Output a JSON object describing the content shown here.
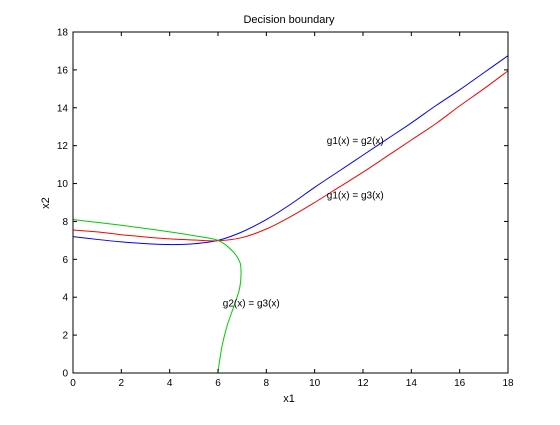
{
  "chart_data": {
    "type": "line",
    "title": "Decision boundary",
    "xlabel": "x1",
    "ylabel": "x2",
    "xlim": [
      0,
      18
    ],
    "ylim": [
      0,
      18
    ],
    "xticks": [
      0,
      2,
      4,
      6,
      8,
      10,
      12,
      14,
      16,
      18
    ],
    "yticks": [
      0,
      2,
      4,
      6,
      8,
      10,
      12,
      14,
      16,
      18
    ],
    "grid": false,
    "legend": "none",
    "series": [
      {
        "color": "#0000ff",
        "points": [
          [
            0,
            7.2
          ],
          [
            1,
            7.05
          ],
          [
            2,
            6.92
          ],
          [
            3,
            6.83
          ],
          [
            4,
            6.78
          ],
          [
            5,
            6.82
          ],
          [
            6,
            7.0
          ],
          [
            7,
            7.45
          ],
          [
            8,
            8.1
          ],
          [
            9,
            8.9
          ],
          [
            10,
            9.8
          ],
          [
            11,
            10.65
          ],
          [
            12,
            11.5
          ],
          [
            13,
            12.35
          ],
          [
            14,
            13.2
          ],
          [
            15,
            14.1
          ],
          [
            16,
            14.95
          ],
          [
            17,
            15.85
          ],
          [
            18,
            16.75
          ]
        ]
      },
      {
        "color": "#ff0000",
        "points": [
          [
            0,
            7.55
          ],
          [
            1,
            7.45
          ],
          [
            2,
            7.3
          ],
          [
            3,
            7.18
          ],
          [
            4,
            7.08
          ],
          [
            5,
            7.02
          ],
          [
            6,
            6.98
          ],
          [
            7,
            7.15
          ],
          [
            8,
            7.6
          ],
          [
            9,
            8.25
          ],
          [
            10,
            9.0
          ],
          [
            11,
            9.8
          ],
          [
            12,
            10.6
          ],
          [
            13,
            11.45
          ],
          [
            14,
            12.3
          ],
          [
            15,
            13.15
          ],
          [
            16,
            14.1
          ],
          [
            17,
            15.0
          ],
          [
            18,
            15.95
          ]
        ]
      },
      {
        "color": "#00cc00",
        "points": [
          [
            0,
            8.1
          ],
          [
            1,
            7.95
          ],
          [
            2,
            7.8
          ],
          [
            3,
            7.63
          ],
          [
            4,
            7.45
          ],
          [
            5,
            7.25
          ],
          [
            6,
            7.0
          ],
          [
            6.55,
            6.5
          ],
          [
            6.85,
            6.0
          ],
          [
            6.95,
            5.5
          ],
          [
            6.9,
            4.5
          ],
          [
            6.65,
            3.5
          ],
          [
            6.38,
            2.5
          ],
          [
            6.18,
            1.5
          ],
          [
            6.05,
            0.5
          ],
          [
            6.0,
            0.0
          ]
        ]
      }
    ],
    "annotations": [
      {
        "text": "g1(x) = g2(x)",
        "x": 10.5,
        "y": 12.1
      },
      {
        "text": "g1(x) = g3(x)",
        "x": 10.5,
        "y": 9.2
      },
      {
        "text": "g2(x) = g3(x)",
        "x": 6.2,
        "y": 3.5
      }
    ]
  }
}
